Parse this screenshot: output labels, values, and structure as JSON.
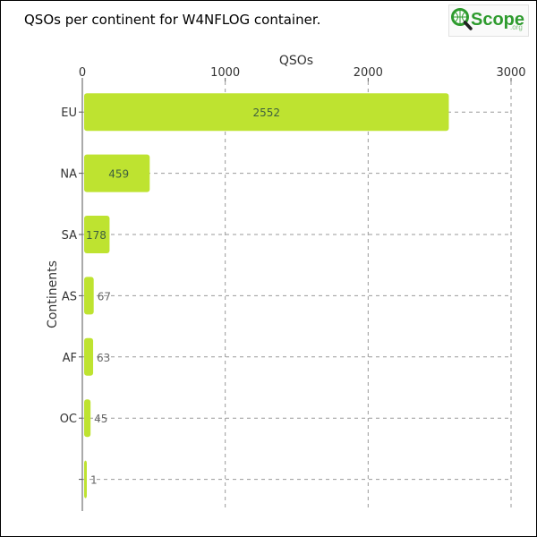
{
  "page": {
    "title": "QSOs per continent for W4NFLOG container.",
    "logo": {
      "text": "Scope",
      "suffix": ".org",
      "icon": "globe-magnifier-icon"
    }
  },
  "colors": {
    "bar": "#bee330",
    "label_inside": "#3f5f3f",
    "label_outside": "#666666",
    "grid": "#999999",
    "axis": "#555555",
    "logo_green": "#2e9b2e"
  },
  "chart_data": {
    "type": "bar",
    "orientation": "horizontal",
    "categories": [
      "EU",
      "NA",
      "SA",
      "AS",
      "AF",
      "OC",
      ""
    ],
    "values": [
      2552,
      459,
      178,
      67,
      63,
      45,
      1
    ],
    "title": "QSOs per continent for W4NFLOG container.",
    "xlabel": "QSOs",
    "ylabel": "Continents",
    "xlim": [
      0,
      3000
    ],
    "xticks": [
      0,
      1000,
      2000,
      3000
    ],
    "x_axis_position": "top",
    "grid": true,
    "legend": "none"
  }
}
